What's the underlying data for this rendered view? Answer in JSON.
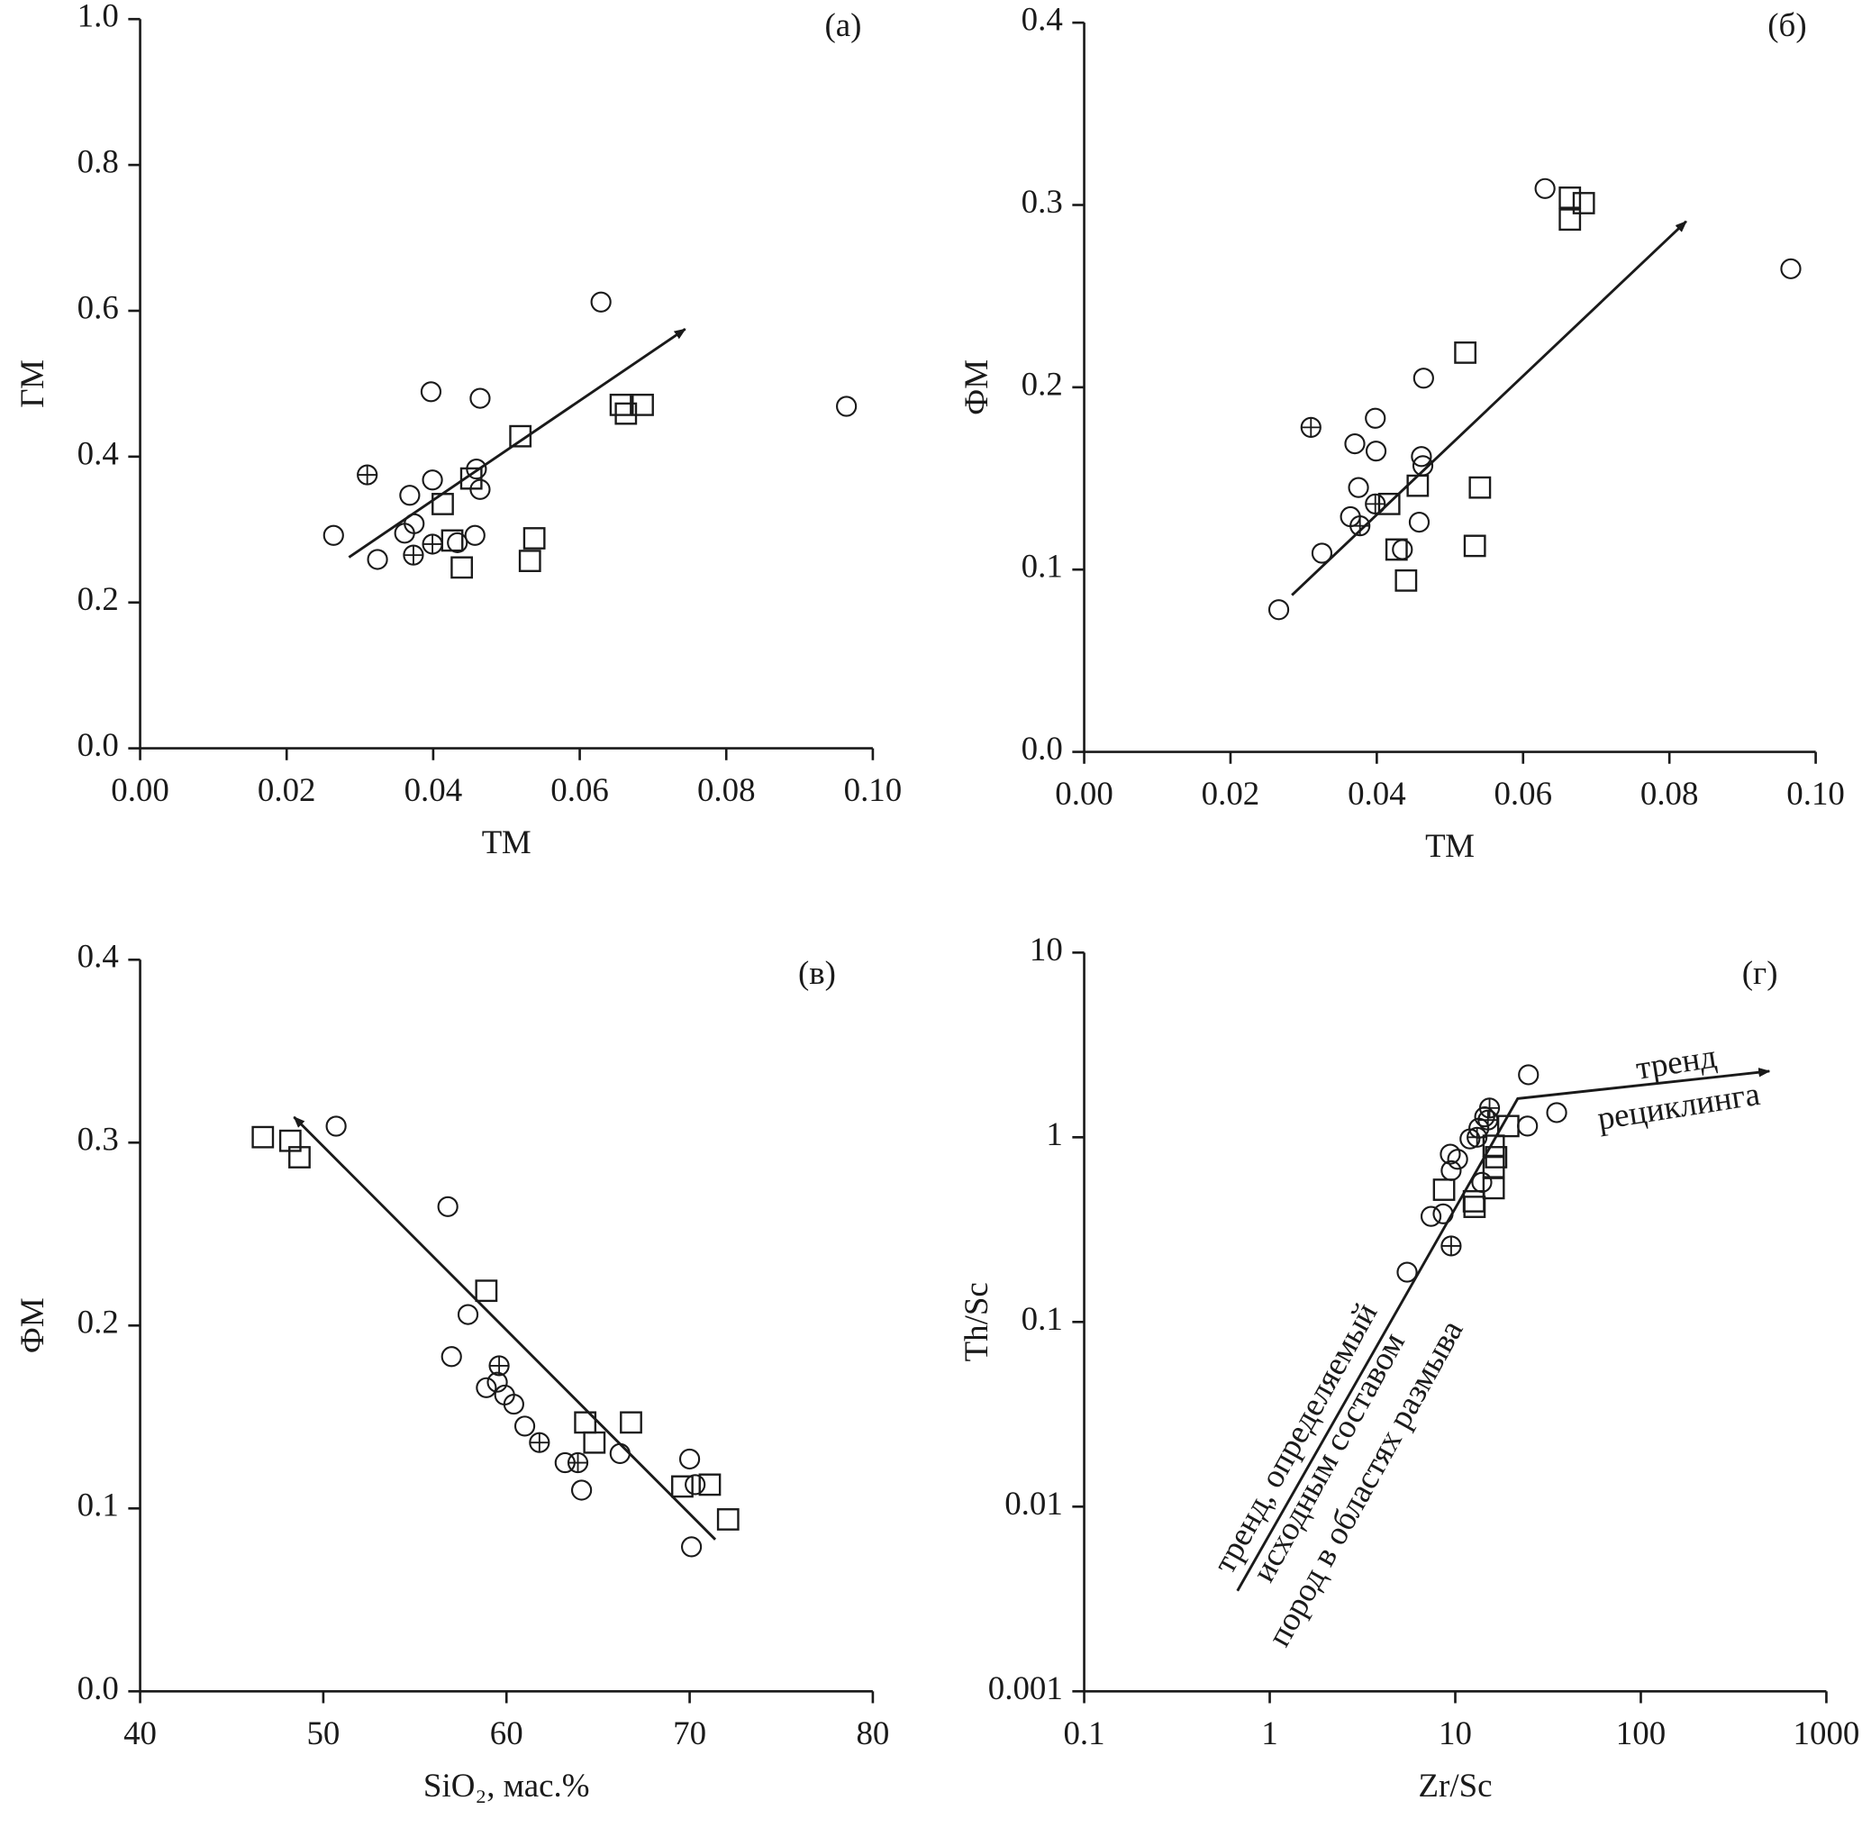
{
  "chart_data": [
    {
      "type": "scatter",
      "panel": "(а)",
      "x_label": "ТМ",
      "y_label": "ГМ",
      "xlim": [
        0,
        0.1
      ],
      "ylim": [
        0,
        1
      ],
      "xticks": [
        {
          "value": 0,
          "label": "0.00"
        },
        {
          "value": 0.02,
          "label": "0.02"
        },
        {
          "value": 0.04,
          "label": "0.04"
        },
        {
          "value": 0.06,
          "label": "0.06"
        },
        {
          "value": 0.08,
          "label": "0.08"
        },
        {
          "value": 0.1,
          "label": "0.10"
        }
      ],
      "yticks": [
        {
          "value": 0,
          "label": "0.0"
        },
        0.2,
        0.4,
        0.6,
        0.8,
        {
          "value": 1,
          "label": "1.0"
        }
      ],
      "series": [
        {
          "marker": "circle",
          "color": "#1a1a1a",
          "x": [
            0.0264,
            0.0324,
            0.0368,
            0.0374,
            0.0361,
            0.0397,
            0.0399,
            0.0433,
            0.0459,
            0.0464,
            0.0464,
            0.0457,
            0.0629,
            0.0964
          ],
          "values": [
            0.292,
            0.259,
            0.347,
            0.308,
            0.295,
            0.489,
            0.368,
            0.282,
            0.383,
            0.355,
            0.48,
            0.292,
            0.612,
            0.469
          ]
        },
        {
          "marker": "circle-plus",
          "color": "#1a1a1a",
          "x": [
            0.031,
            0.0373,
            0.0399
          ],
          "values": [
            0.375,
            0.265,
            0.28
          ]
        },
        {
          "marker": "square",
          "color": "#1a1a1a",
          "x": [
            0.0452,
            0.0413,
            0.0426,
            0.0439,
            0.0519,
            0.0532,
            0.0538,
            0.0656,
            0.0663,
            0.0686
          ],
          "values": [
            0.37,
            0.335,
            0.285,
            0.248,
            0.428,
            0.257,
            0.288,
            0.471,
            0.459,
            0.471
          ]
        }
      ],
      "arrows": [
        {
          "x": [
            0.0285,
            0.0744
          ],
          "y": [
            0.262,
            0.575
          ]
        }
      ]
    },
    {
      "type": "scatter",
      "panel": "(б)",
      "x_label": "ТМ",
      "y_label": "ФМ",
      "xlim": [
        0,
        0.1
      ],
      "ylim": [
        0,
        0.4
      ],
      "xticks": [
        {
          "value": 0,
          "label": "0.00"
        },
        {
          "value": 0.02,
          "label": "0.02"
        },
        {
          "value": 0.04,
          "label": "0.04"
        },
        {
          "value": 0.06,
          "label": "0.06"
        },
        {
          "value": 0.08,
          "label": "0.08"
        },
        {
          "value": 0.1,
          "label": "0.10"
        }
      ],
      "yticks": [
        {
          "value": 0,
          "label": "0.0"
        },
        0.1,
        0.2,
        0.3,
        0.4
      ],
      "series": [
        {
          "marker": "circle",
          "color": "#1a1a1a",
          "x": [
            0.0266,
            0.0325,
            0.0364,
            0.037,
            0.0375,
            0.0398,
            0.0399,
            0.0435,
            0.0458,
            0.0461,
            0.0463,
            0.0464,
            0.063,
            0.0966
          ],
          "values": [
            0.078,
            0.109,
            0.129,
            0.169,
            0.145,
            0.183,
            0.165,
            0.111,
            0.126,
            0.162,
            0.157,
            0.205,
            0.309,
            0.265
          ]
        },
        {
          "marker": "circle-plus",
          "color": "#1a1a1a",
          "x": [
            0.031,
            0.0377,
            0.0398
          ],
          "values": [
            0.178,
            0.124,
            0.136
          ]
        },
        {
          "marker": "square",
          "color": "#1a1a1a",
          "x": [
            0.0417,
            0.0427,
            0.044,
            0.0456,
            0.0521,
            0.0541,
            0.0534,
            0.0664,
            0.0664,
            0.0683
          ],
          "values": [
            0.136,
            0.111,
            0.094,
            0.146,
            0.219,
            0.145,
            0.113,
            0.304,
            0.292,
            0.301
          ]
        }
      ],
      "arrows": [
        {
          "x": [
            0.0284,
            0.0823
          ],
          "y": [
            0.086,
            0.291
          ]
        }
      ]
    },
    {
      "type": "scatter",
      "panel": "(в)",
      "x_label": "SiO₂, мас.%",
      "y_label": "ФМ",
      "xlim": [
        40,
        80
      ],
      "ylim": [
        0,
        0.4
      ],
      "xticks": [
        40,
        50,
        60,
        70,
        80
      ],
      "yticks": [
        {
          "value": 0,
          "label": "0.0"
        },
        0.1,
        0.2,
        0.3,
        0.4
      ],
      "series": [
        {
          "marker": "circle",
          "color": "#1a1a1a",
          "x": [
            50.7,
            56.8,
            57.0,
            57.9,
            58.9,
            59.5,
            59.9,
            60.4,
            61.0,
            63.2,
            64.1,
            66.2,
            70.0,
            70.3,
            70.1
          ],
          "values": [
            0.309,
            0.265,
            0.183,
            0.206,
            0.166,
            0.169,
            0.162,
            0.157,
            0.145,
            0.125,
            0.11,
            0.13,
            0.127,
            0.113,
            0.079
          ]
        },
        {
          "marker": "circle-plus",
          "color": "#1a1a1a",
          "x": [
            59.6,
            61.8,
            63.9
          ],
          "values": [
            0.178,
            0.136,
            0.125
          ]
        },
        {
          "marker": "square",
          "color": "#1a1a1a",
          "x": [
            46.7,
            48.2,
            48.7,
            58.9,
            64.3,
            64.8,
            66.8,
            69.6,
            71.1,
            72.1
          ],
          "values": [
            0.303,
            0.301,
            0.292,
            0.219,
            0.147,
            0.136,
            0.147,
            0.112,
            0.113,
            0.094
          ]
        }
      ],
      "arrows": [
        {
          "x": [
            71.4,
            48.4
          ],
          "y": [
            0.083,
            0.314
          ]
        }
      ]
    },
    {
      "type": "scatter",
      "panel": "(г)",
      "x_label": "Zr/Sc",
      "y_label": "Th/Sc",
      "xscale": "log",
      "yscale": "log",
      "xlim": [
        0.1,
        1000
      ],
      "ylim": [
        0.001,
        10
      ],
      "xticks": [
        0.1,
        1,
        10,
        100,
        1000
      ],
      "yticks": [
        0.001,
        0.01,
        0.1,
        1,
        10
      ],
      "series": [
        {
          "marker": "circle",
          "color": "#1a1a1a",
          "x": [
            5.5,
            7.4,
            8.6,
            9.4,
            9.5,
            10.3,
            12.0,
            13.4,
            14.4,
            24.8,
            35.2,
            24.5,
            13.9
          ],
          "values": [
            0.186,
            0.373,
            0.385,
            0.81,
            0.66,
            0.76,
            0.98,
            1.12,
            1.29,
            2.18,
            1.36,
            1.15,
            0.57
          ]
        },
        {
          "marker": "circle-plus",
          "color": "#1a1a1a",
          "x": [
            9.5,
            15.3,
            13.1,
            15.0
          ],
          "values": [
            0.258,
            1.44,
            1.0,
            1.24
          ]
        },
        {
          "marker": "square",
          "color": "#1a1a1a",
          "x": [
            8.7,
            12.6,
            12.7,
            16.1,
            16.1,
            16.1,
            19.3,
            16.6
          ],
          "values": [
            0.52,
            0.45,
            0.42,
            0.53,
            0.69,
            0.9,
            1.15,
            0.78
          ]
        }
      ],
      "arrows": [
        {
          "x": [
            0.67,
            21.7,
            493
          ],
          "y": [
            0.0035,
            1.62,
            2.28
          ]
        }
      ],
      "annotations": [
        "тренд",
        "рециклинга",
        "тренд, определяемый",
        "исходным составом",
        "пород в областях размыва"
      ]
    }
  ]
}
